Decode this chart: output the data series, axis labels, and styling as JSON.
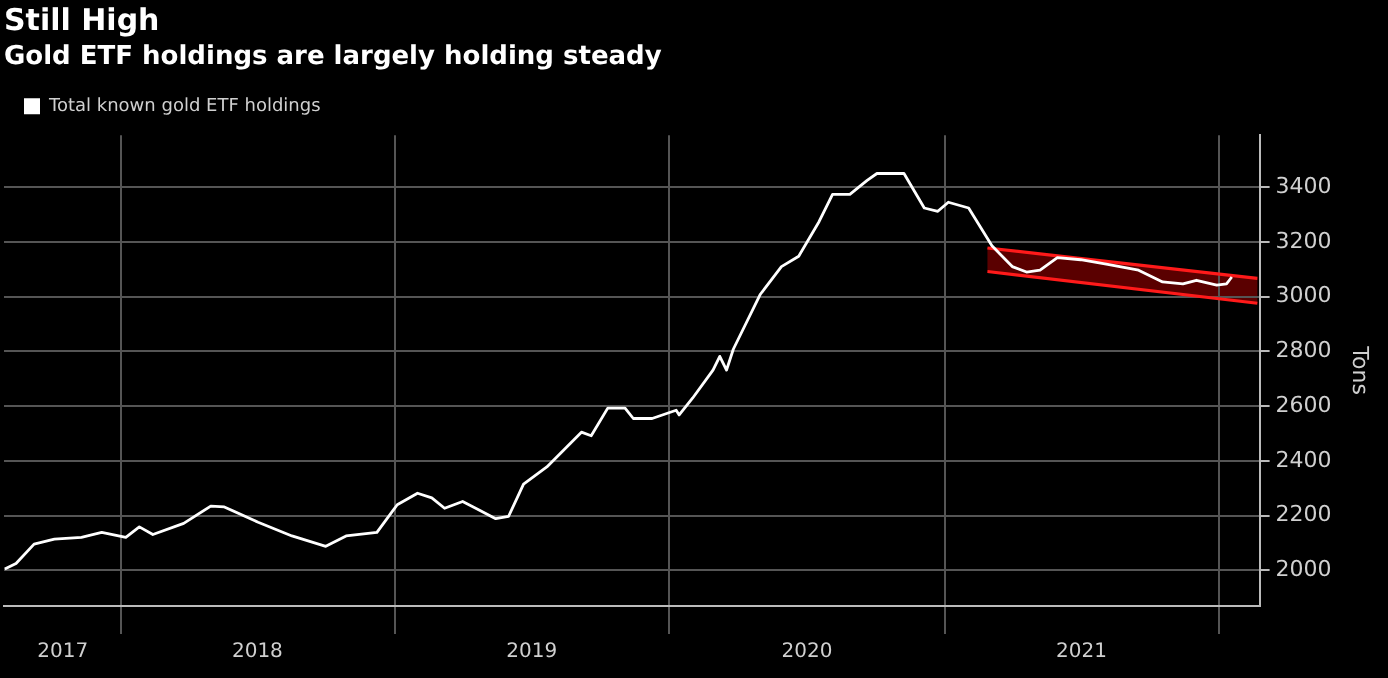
{
  "chart_data": {
    "type": "line",
    "title": "Still High",
    "subtitle": "Gold ETF holdings are largely holding steady",
    "ylabel": "Tons",
    "xlim": [
      "2017-07-30",
      "2022-02-24"
    ],
    "xticks": [
      {
        "value": "2017-10-16",
        "label": "2017"
      },
      {
        "value": "2018-01-01",
        "label": null
      },
      {
        "value": "2018-07-02",
        "label": "2018"
      },
      {
        "value": "2019-01-01",
        "label": null
      },
      {
        "value": "2019-07-02",
        "label": "2019"
      },
      {
        "value": "2020-01-01",
        "label": null
      },
      {
        "value": "2020-07-02",
        "label": "2020"
      },
      {
        "value": "2021-01-01",
        "label": null
      },
      {
        "value": "2021-07-02",
        "label": "2021"
      },
      {
        "value": "2022-01-01",
        "label": null
      }
    ],
    "ylim": [
      1870,
      3590
    ],
    "yticks": [
      2000,
      2200,
      2400,
      2600,
      2800,
      3000,
      3200,
      3400
    ],
    "grid": true,
    "legend": "top left",
    "series": [
      {
        "name": "Total known gold ETF holdings",
        "color": "#ffffff",
        "x": [
          "2017-07-31",
          "2017-08-15",
          "2017-09-08",
          "2017-10-05",
          "2017-11-10",
          "2017-12-07",
          "2018-01-08",
          "2018-01-26",
          "2018-02-13",
          "2018-03-26",
          "2018-05-01",
          "2018-05-19",
          "2018-07-03",
          "2018-08-17",
          "2018-10-01",
          "2018-10-28",
          "2018-12-08",
          "2019-01-04",
          "2019-01-31",
          "2019-02-19",
          "2019-03-08",
          "2019-04-01",
          "2019-05-15",
          "2019-06-01",
          "2019-06-21",
          "2019-07-22",
          "2019-09-06",
          "2019-09-19",
          "2019-10-11",
          "2019-11-03",
          "2019-11-14",
          "2019-12-09",
          "2020-01-10",
          "2020-01-14",
          "2020-02-01",
          "2020-02-28",
          "2020-03-08",
          "2020-03-17",
          "2020-03-26",
          "2020-05-01",
          "2020-05-29",
          "2020-06-21",
          "2020-07-18",
          "2020-08-05",
          "2020-08-28",
          "2020-09-20",
          "2020-10-03",
          "2020-11-08",
          "2020-12-05",
          "2020-12-23",
          "2021-01-06",
          "2021-02-02",
          "2021-03-05",
          "2021-04-01",
          "2021-04-20",
          "2021-05-08",
          "2021-05-31",
          "2021-07-01",
          "2021-08-06",
          "2021-09-16",
          "2021-10-18",
          "2021-11-14",
          "2021-12-02",
          "2021-12-29",
          "2022-01-11",
          "2022-01-18"
        ],
        "values": [
          2005,
          2025,
          2096,
          2114,
          2121,
          2139,
          2121,
          2159,
          2131,
          2172,
          2235,
          2232,
          2176,
          2126,
          2088,
          2126,
          2139,
          2240,
          2282,
          2265,
          2227,
          2252,
          2189,
          2197,
          2315,
          2378,
          2505,
          2492,
          2593,
          2593,
          2555,
          2555,
          2585,
          2568,
          2630,
          2732,
          2782,
          2732,
          2808,
          3009,
          3110,
          3148,
          3274,
          3374,
          3374,
          3425,
          3450,
          3450,
          3324,
          3312,
          3345,
          3324,
          3186,
          3110,
          3090,
          3097,
          3143,
          3135,
          3118,
          3097,
          3054,
          3047,
          3060,
          3042,
          3047,
          3072
        ]
      },
      {
        "type": "line",
        "color": "#ff1a1a",
        "x": [
          "2021-02-27",
          "2022-02-21"
        ],
        "values": [
          3178,
          3067
        ]
      },
      {
        "type": "line",
        "color": "#ff1a1a",
        "x": [
          "2021-02-27",
          "2022-02-21"
        ],
        "values": [
          3092,
          2976
        ]
      }
    ]
  }
}
